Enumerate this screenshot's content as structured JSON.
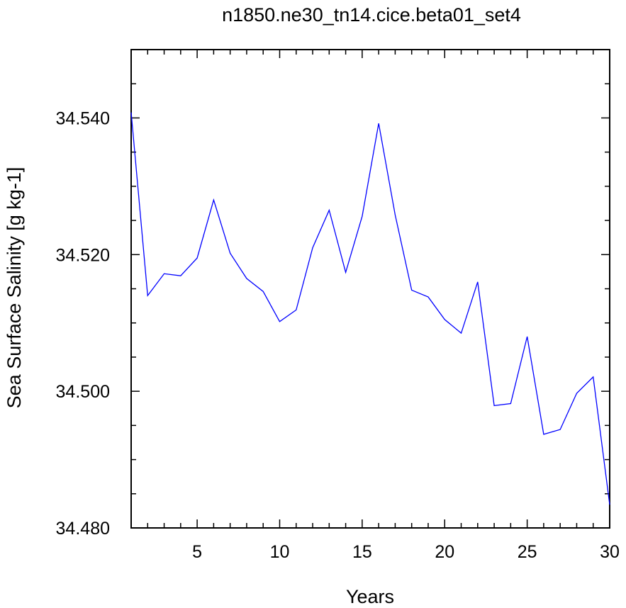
{
  "chart_data": {
    "type": "line",
    "title": "n1850.ne30_tn14.cice.beta01_set4",
    "xlabel": "Years",
    "ylabel": "Sea Surface Salinity [g kg-1]",
    "xlim": [
      1,
      30
    ],
    "ylim": [
      34.48,
      34.55
    ],
    "x_ticks": [
      5,
      10,
      15,
      20,
      25,
      30
    ],
    "x_tick_labels": [
      "5",
      "10",
      "15",
      "20",
      "25",
      "30"
    ],
    "y_ticks": [
      34.48,
      34.5,
      34.52,
      34.54
    ],
    "y_tick_labels": [
      "34.480",
      "34.500",
      "34.520",
      "34.540"
    ],
    "grid": false,
    "series": [
      {
        "color": "#0000ff",
        "x": [
          1,
          2,
          3,
          4,
          5,
          6,
          7,
          8,
          9,
          10,
          11,
          12,
          13,
          14,
          15,
          16,
          17,
          18,
          19,
          20,
          21,
          22,
          23,
          24,
          25,
          26,
          27,
          28,
          29,
          30
        ],
        "values": [
          34.5408,
          34.514,
          34.5172,
          34.5169,
          34.5195,
          34.528,
          34.5202,
          34.5165,
          34.5146,
          34.5102,
          34.5119,
          34.521,
          34.5265,
          34.5174,
          34.5256,
          34.5392,
          34.5258,
          34.5148,
          34.5138,
          34.5105,
          34.5085,
          34.516,
          34.4979,
          34.4982,
          34.508,
          34.4937,
          34.4944,
          34.4997,
          34.5021,
          34.4834
        ]
      }
    ]
  }
}
